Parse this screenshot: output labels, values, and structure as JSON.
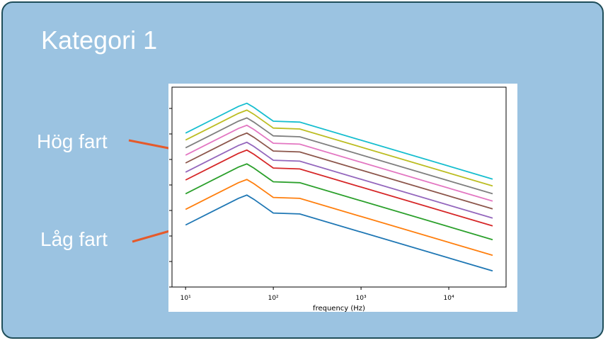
{
  "slide": {
    "title": "Kategori 1",
    "label_high": "Hög fart",
    "label_low": "Låg fart",
    "arrow_color": "#e55a2b"
  },
  "chart_data": {
    "type": "line",
    "title": "",
    "xlabel": "frequency (Hz)",
    "ylabel": "",
    "x_scale": "log",
    "xlim": [
      7,
      45000
    ],
    "x_ticks": [
      {
        "value": 10,
        "label": "10¹"
      },
      {
        "value": 100,
        "label": "10²"
      },
      {
        "value": 1000,
        "label": "10³"
      },
      {
        "value": 10000,
        "label": "10⁴"
      }
    ],
    "y_tick_labels_visible": false,
    "legend": "none",
    "grid": false,
    "x": [
      10,
      20,
      40,
      50,
      60,
      100,
      200,
      31623
    ],
    "series": [
      {
        "color": "#1f77b4",
        "values": [
          0.0,
          0.29,
          0.58,
          0.65,
          0.56,
          0.26,
          0.24,
          -1.0
        ]
      },
      {
        "color": "#ff7f0e",
        "values": [
          0.34,
          0.63,
          0.92,
          0.99,
          0.9,
          0.6,
          0.58,
          -0.66
        ]
      },
      {
        "color": "#2ca02c",
        "values": [
          0.68,
          0.97,
          1.26,
          1.33,
          1.24,
          0.94,
          0.92,
          -0.32
        ]
      },
      {
        "color": "#d62728",
        "values": [
          0.98,
          1.27,
          1.56,
          1.63,
          1.54,
          1.24,
          1.22,
          -0.02
        ]
      },
      {
        "color": "#9467bd",
        "values": [
          1.15,
          1.44,
          1.73,
          1.8,
          1.71,
          1.41,
          1.39,
          0.15
        ]
      },
      {
        "color": "#8c564b",
        "values": [
          1.35,
          1.64,
          1.93,
          2.0,
          1.91,
          1.61,
          1.59,
          0.35
        ]
      },
      {
        "color": "#e377c2",
        "values": [
          1.52,
          1.81,
          2.1,
          2.17,
          2.08,
          1.78,
          1.76,
          0.52
        ]
      },
      {
        "color": "#7f7f7f",
        "values": [
          1.68,
          1.97,
          2.26,
          2.33,
          2.24,
          1.94,
          1.92,
          0.68
        ]
      },
      {
        "color": "#bcbd22",
        "values": [
          1.85,
          2.14,
          2.43,
          2.5,
          2.41,
          2.11,
          2.09,
          0.85
        ]
      },
      {
        "color": "#17becf",
        "values": [
          2.0,
          2.29,
          2.58,
          2.65,
          2.56,
          2.26,
          2.24,
          1.0
        ]
      }
    ]
  }
}
